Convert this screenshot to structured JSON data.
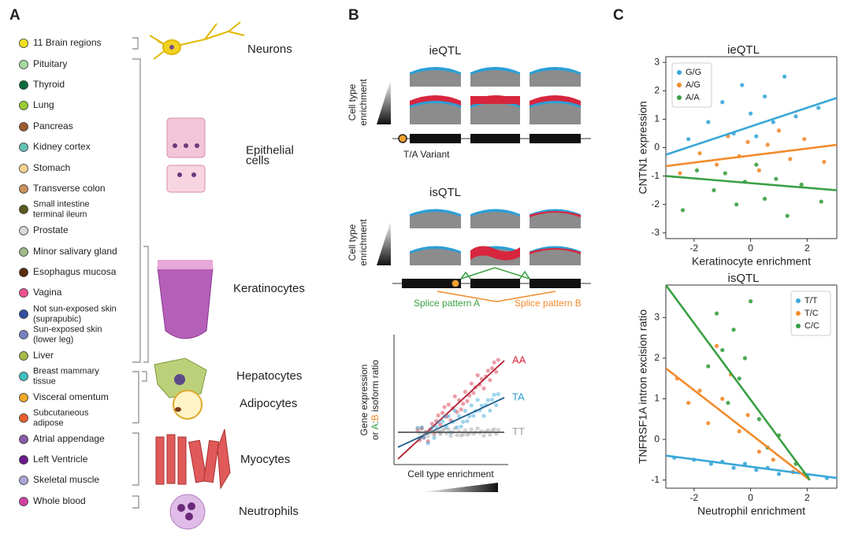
{
  "panel_labels": [
    "A",
    "B",
    "C"
  ],
  "tissues": [
    {
      "name": [
        "11 Brain regions"
      ],
      "color": "#f2e01f"
    },
    {
      "name": [
        "Pituitary"
      ],
      "color": "#a6d9a0"
    },
    {
      "name": [
        "Thyroid"
      ],
      "color": "#0a6b3a"
    },
    {
      "name": [
        "Lung"
      ],
      "color": "#9acd32"
    },
    {
      "name": [
        "Pancreas"
      ],
      "color": "#9c5b2e"
    },
    {
      "name": [
        "Kidney cortex"
      ],
      "color": "#66c2b5"
    },
    {
      "name": [
        "Stomach"
      ],
      "color": "#f7d48e"
    },
    {
      "name": [
        "Transverse colon"
      ],
      "color": "#c9905a"
    },
    {
      "name": [
        "Small intestine",
        "terminal ileum"
      ],
      "color": "#5a5a1e"
    },
    {
      "name": [
        "Prostate"
      ],
      "color": "#d9d9d9"
    },
    {
      "name": [
        "Minor salivary gland"
      ],
      "color": "#9fb98a"
    },
    {
      "name": [
        "Esophagus mucosa"
      ],
      "color": "#5a2d0c"
    },
    {
      "name": [
        "Vagina"
      ],
      "color": "#f05090"
    },
    {
      "name": [
        "Not sun-exposed skin",
        "(suprapubic)"
      ],
      "color": "#3350a0"
    },
    {
      "name": [
        "Sun-exposed skin",
        "(lower leg)"
      ],
      "color": "#7880c0"
    },
    {
      "name": [
        "Liver"
      ],
      "color": "#a8b84a"
    },
    {
      "name": [
        "Breast mammary",
        "tissue"
      ],
      "color": "#40c0c0"
    },
    {
      "name": [
        "Visceral omentum"
      ],
      "color": "#f2a828"
    },
    {
      "name": [
        "Subcutaneous",
        "adipose"
      ],
      "color": "#e8602c"
    },
    {
      "name": [
        "Atrial appendage"
      ],
      "color": "#8a5aa8"
    },
    {
      "name": [
        "Left Ventricle"
      ],
      "color": "#6a1a8a"
    },
    {
      "name": [
        "Skeletal muscle"
      ],
      "color": "#a8a8d8"
    },
    {
      "name": [
        "Whole blood"
      ],
      "color": "#d040a0"
    }
  ],
  "cell_types": [
    [
      "Neurons"
    ],
    [
      "Epithelial",
      "cells"
    ],
    [
      "Keratinocytes"
    ],
    [
      "Hepatocytes"
    ],
    [
      "Adipocytes"
    ],
    [
      "Myocytes"
    ],
    [
      "Neutrophils"
    ]
  ],
  "schematic": {
    "ieqtl_title": "ieQTL",
    "isqtl_title": "isQTL",
    "enrichment_label": [
      "Cell type",
      "enrichment"
    ],
    "variant_label": "T/A Variant",
    "splice_a": "Splice pattern A",
    "splice_b": "Splice pattern B",
    "mini_ylabel": [
      "Gene expression",
      "or ",
      "A",
      ":",
      "B",
      " isoform ratio"
    ],
    "mini_xlabel": "Cell type enrichment",
    "lines": [
      {
        "name": "AA",
        "color": "#d7263d"
      },
      {
        "name": "TA",
        "color": "#2b9fd6"
      },
      {
        "name": "TT",
        "color": "#999999"
      }
    ]
  },
  "chart_data": [
    {
      "type": "scatter",
      "title": "ieQTL",
      "xlabel": "Keratinocyte enrichment",
      "ylabel": "CNTN1 expression",
      "xlim": [
        -3,
        3.05
      ],
      "ylim": [
        -3.2,
        3.2
      ],
      "xticks": [
        -2,
        0,
        2
      ],
      "yticks": [
        -3,
        -2,
        -1,
        0,
        1,
        2,
        3
      ],
      "legend": "upper left",
      "series": [
        {
          "name": "G/G",
          "color": "#3aa7d8",
          "x": [
            -2.2,
            -1.5,
            -1.0,
            -0.6,
            -0.3,
            0,
            0.2,
            0.5,
            0.8,
            1.2,
            1.6,
            2.4
          ],
          "y": [
            0.3,
            0.9,
            1.6,
            0.5,
            2.2,
            1.2,
            0.4,
            1.8,
            0.9,
            2.5,
            1.1,
            1.4
          ],
          "fit": {
            "x": [
              -3,
              3.05
            ],
            "y": [
              -0.25,
              1.75
            ]
          }
        },
        {
          "name": "A/G",
          "color": "#f28b2c",
          "x": [
            -2.5,
            -1.8,
            -1.2,
            -0.8,
            -0.4,
            -0.1,
            0.3,
            0.6,
            1.0,
            1.4,
            1.9,
            2.6
          ],
          "y": [
            -0.9,
            -0.2,
            -0.6,
            0.4,
            -0.3,
            0.2,
            -0.8,
            0.1,
            0.6,
            -0.4,
            0.3,
            -0.5
          ],
          "fit": {
            "x": [
              -3,
              3.05
            ],
            "y": [
              -0.65,
              0.1
            ]
          }
        },
        {
          "name": "A/A",
          "color": "#3aa043",
          "x": [
            -2.4,
            -1.9,
            -1.3,
            -0.9,
            -0.5,
            -0.2,
            0.2,
            0.5,
            0.9,
            1.3,
            1.8,
            2.5
          ],
          "y": [
            -2.2,
            -0.8,
            -1.5,
            -0.9,
            -2.0,
            -1.2,
            -0.6,
            -1.8,
            -1.1,
            -2.4,
            -1.3,
            -1.9
          ],
          "fit": {
            "x": [
              -3,
              3.05
            ],
            "y": [
              -1,
              -1.5
            ]
          }
        }
      ]
    },
    {
      "type": "scatter",
      "title": "isQTL",
      "xlabel": "Neutrophil enrichment",
      "ylabel": "TNFRSF1A intron excision ratio",
      "xlim": [
        -3,
        3.05
      ],
      "ylim": [
        -1.2,
        3.8
      ],
      "xticks": [
        -2,
        0,
        2
      ],
      "yticks": [
        -1,
        0,
        1,
        2,
        3
      ],
      "legend": "upper right",
      "series": [
        {
          "name": "T/T",
          "color": "#3aa7d8",
          "x": [
            -2.7,
            -2.0,
            -1.4,
            -1.0,
            -0.6,
            -0.2,
            0.2,
            0.6,
            1.0,
            1.5,
            2.0,
            2.7
          ],
          "y": [
            -0.45,
            -0.5,
            -0.6,
            -0.55,
            -0.7,
            -0.6,
            -0.75,
            -0.7,
            -0.85,
            -0.8,
            -0.9,
            -0.95
          ],
          "fit": {
            "x": [
              -3,
              3.05
            ],
            "y": [
              -0.4,
              -0.95
            ]
          }
        },
        {
          "name": "T/C",
          "color": "#f28b2c",
          "x": [
            -2.6,
            -2.2,
            -1.8,
            -1.5,
            -1.2,
            -1.0,
            -0.7,
            -0.4,
            -0.1,
            0.3,
            0.8,
            1.5
          ],
          "y": [
            1.5,
            0.9,
            1.2,
            0.4,
            2.3,
            1.0,
            1.6,
            0.2,
            0.6,
            -0.3,
            -0.5,
            -0.8
          ],
          "fit": {
            "x": [
              -3,
              2.1
            ],
            "y": [
              1.75,
              -1
            ]
          }
        },
        {
          "name": "C/C",
          "color": "#3aa043",
          "x": [
            -1.5,
            -1.2,
            -1.0,
            -0.8,
            -0.6,
            -0.4,
            -0.2,
            0,
            0.3,
            0.6,
            1.0,
            1.6
          ],
          "y": [
            1.8,
            3.1,
            2.2,
            0.9,
            2.7,
            1.5,
            2.0,
            3.4,
            0.5,
            -0.2,
            0.1,
            -0.6
          ],
          "fit": {
            "x": [
              -3,
              2.1
            ],
            "y": [
              3.8,
              -1
            ]
          }
        }
      ]
    }
  ]
}
